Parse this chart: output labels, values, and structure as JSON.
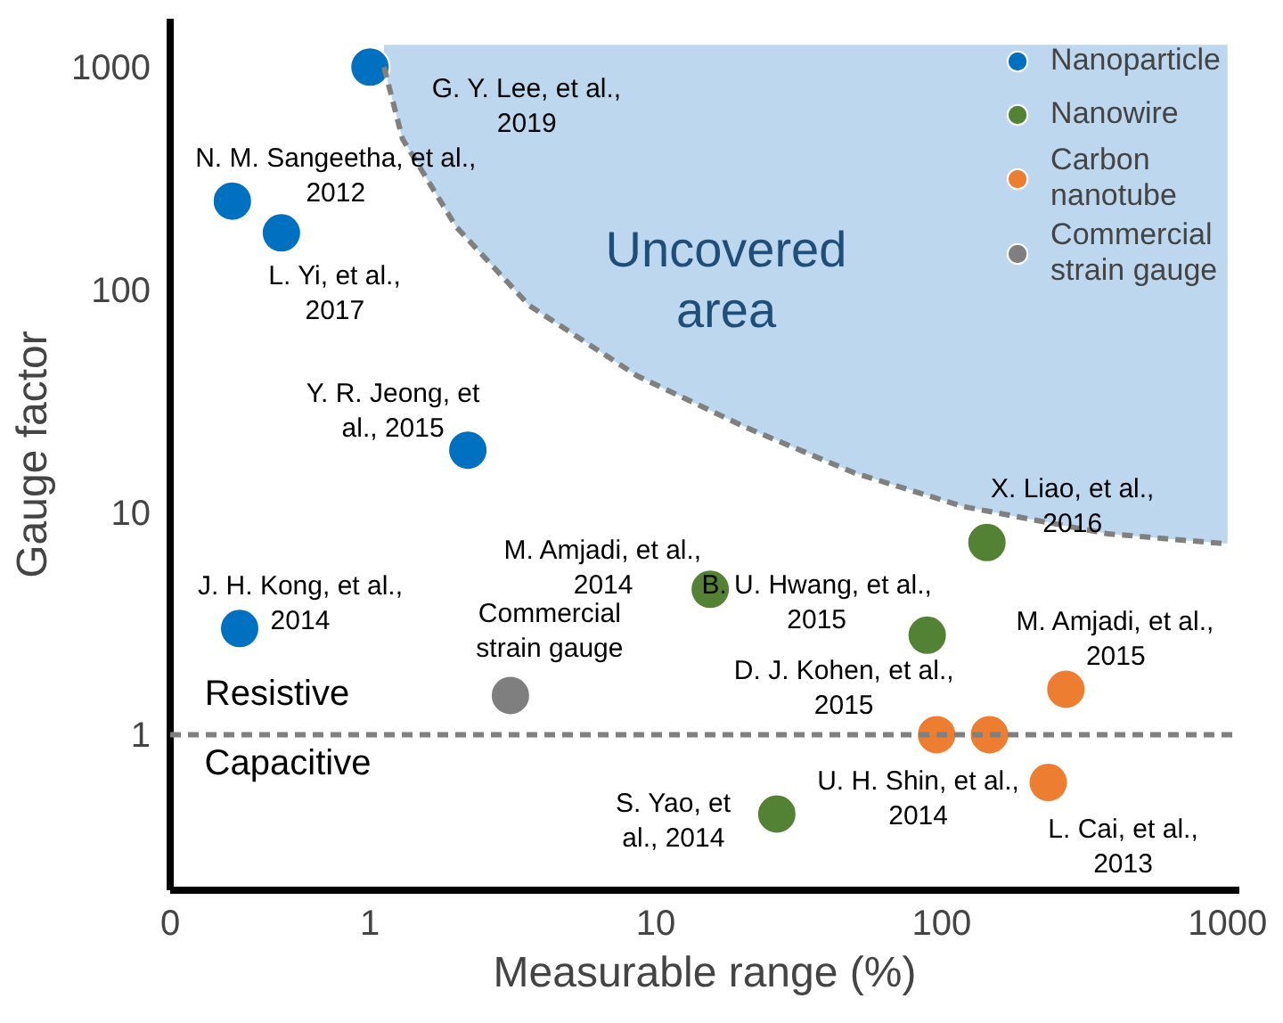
{
  "chart_data": {
    "type": "scatter",
    "xlabel": "Measurable range (%)",
    "ylabel": "Gauge factor",
    "log": "xy",
    "grid": false,
    "legend": "top right",
    "marker": "circle",
    "xlim": [
      0.2,
      1100
    ],
    "ylim": [
      0.2,
      1650
    ],
    "xticks": [
      {
        "value": 0.2,
        "label": "0"
      },
      1,
      10,
      100,
      1000
    ],
    "yticks": [
      1,
      10,
      100,
      1000
    ],
    "series": [
      {
        "name": "Nanoparticle",
        "color": "#0070c0",
        "x": [
          1.0,
          0.33,
          0.49,
          2.2,
          0.35
        ],
        "values": [
          1000,
          250,
          180,
          19,
          3.0
        ]
      },
      {
        "name": "Nanowire",
        "color": "#548235",
        "x": [
          144,
          15.5,
          89,
          26.5
        ],
        "values": [
          7.3,
          4.5,
          2.8,
          0.44
        ]
      },
      {
        "name": "Carbon nanotube",
        "color": "#ed7d31",
        "x": [
          272,
          96,
          147,
          236
        ],
        "values": [
          1.6,
          1.0,
          1.0,
          0.61
        ]
      },
      {
        "name": "Commercial strain gauge",
        "color": "#7f7f7f",
        "x": [
          3.1
        ],
        "values": [
          1.5
        ]
      },
      {
        "type": "line",
        "color": "#808080",
        "line_style": "dashed",
        "marker": "none",
        "x": [
          1.12,
          1.3,
          2.0,
          3.6,
          8.6,
          20.7,
          49.6,
          119,
          380,
          1000
        ],
        "values": [
          1000,
          475,
          192,
          85,
          41,
          24,
          15,
          10.6,
          8.0,
          7.2
        ]
      }
    ],
    "ref_lines": [
      {
        "axis": "y",
        "value": 1,
        "color": "#808080",
        "line_style": "dashed"
      }
    ],
    "annotations": [
      {
        "text": "G. Y. Lee, et al.,\n2019",
        "x": 1.0,
        "y": 1000
      },
      {
        "text": "N. M. Sangeetha, et al.,\n2012",
        "x": 0.33,
        "y": 250
      },
      {
        "text": "L. Yi, et al.,\n2017",
        "x": 0.49,
        "y": 180
      },
      {
        "text": "Y. R. Jeong, et\nal., 2015",
        "x": 2.2,
        "y": 19
      },
      {
        "text": "J. H. Kong, et al.,\n2014",
        "x": 0.35,
        "y": 3.0
      },
      {
        "text": "X. Liao, et al.,\n2016",
        "x": 144,
        "y": 7.3
      },
      {
        "text": "M. Amjadi, et al.,\n2014",
        "x": 15.5,
        "y": 4.5
      },
      {
        "text": "B. U. Hwang, et al.,\n2015",
        "x": 89,
        "y": 2.8
      },
      {
        "text": "S. Yao, et\nal., 2014",
        "x": 26.5,
        "y": 0.44
      },
      {
        "text": "M. Amjadi, et al.,\n2015",
        "x": 272,
        "y": 1.6
      },
      {
        "text": "D. J. Kohen, et al.,\n2015",
        "x": 96,
        "y": 1.0
      },
      {
        "text": "U. H. Shin, et al.,\n2014",
        "x": 147,
        "y": 1.0
      },
      {
        "text": "L. Cai, et al.,\n2013",
        "x": 236,
        "y": 0.61
      },
      {
        "text": "Commercial\nstrain gauge",
        "x": 3.1,
        "y": 1.5
      },
      "Uncovered\narea",
      "Resistive",
      "Capacitive"
    ]
  }
}
